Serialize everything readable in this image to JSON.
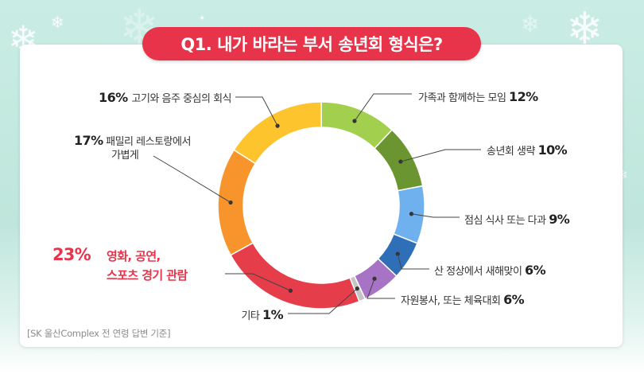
{
  "title": "Q1. 내가 바라는 부서 송년회 형식은?",
  "source_note": "[SK 울산Complex 전 연령 답변 기준]",
  "chart_data": {
    "type": "pie",
    "donut": true,
    "title": "Q1. 내가 바라는 부서 송년회 형식은?",
    "slices": [
      {
        "key": "family",
        "label": "가족과 함께하는 모임",
        "value": 12,
        "display": "12%",
        "color": "#a3cf4f"
      },
      {
        "key": "skip",
        "label": "송년회 생략",
        "value": 10,
        "display": "10%",
        "color": "#6a9530"
      },
      {
        "key": "lunch",
        "label": "점심 식사 또는 다과",
        "value": 9,
        "display": "9%",
        "color": "#6fb0ee"
      },
      {
        "key": "sunrise",
        "label": "산 정상에서 새해맞이",
        "value": 6,
        "display": "6%",
        "color": "#2f6fb8"
      },
      {
        "key": "volunteer",
        "label": "자원봉사, 또는 체육대회",
        "value": 6,
        "display": "6%",
        "color": "#a773c4"
      },
      {
        "key": "other",
        "label": "기타",
        "value": 1,
        "display": "1%",
        "color": "#c5c5c5"
      },
      {
        "key": "culture",
        "label": "영화, 공연, 스포츠 경기 관람",
        "label_lines": [
          "영화, 공연,",
          "스포츠 경기 관람"
        ],
        "value": 23,
        "display": "23%",
        "color": "#e63d4a",
        "highlight": true
      },
      {
        "key": "restaurant",
        "label": "패밀리 레스토랑에서 가볍게",
        "label_lines": [
          "패밀리 레스토랑에서",
          "가볍게"
        ],
        "value": 17,
        "display": "17%",
        "color": "#f7952c"
      },
      {
        "key": "meat",
        "label": "고기와 음주 중심의 회식",
        "value": 16,
        "display": "16%",
        "color": "#fdc42e"
      }
    ]
  }
}
